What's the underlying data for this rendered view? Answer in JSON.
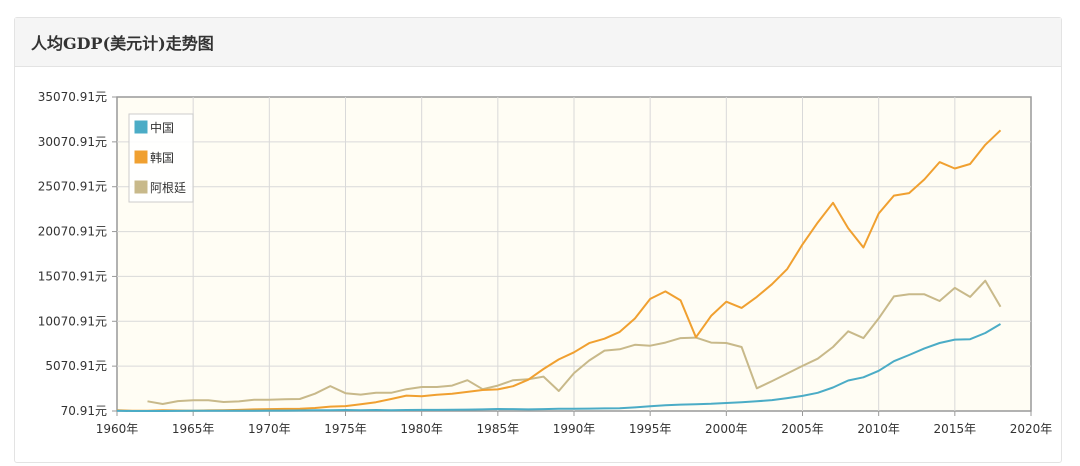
{
  "header": {
    "title": "人均GDP(美元计)走势图"
  },
  "chart_data": {
    "type": "line",
    "title": "人均GDP(美元计)走势图",
    "xlabel": "",
    "ylabel": "",
    "xlim": [
      1960,
      2020
    ],
    "ylim": [
      70.91,
      35070.91
    ],
    "x_ticks": [
      "1960年",
      "1965年",
      "1970年",
      "1975年",
      "1980年",
      "1985年",
      "1990年",
      "1995年",
      "2000年",
      "2005年",
      "2010年",
      "2015年",
      "2020年"
    ],
    "y_ticks": [
      "70.91元",
      "5070.91元",
      "10070.91元",
      "15070.91元",
      "20070.91元",
      "25070.91元",
      "30070.91元",
      "35070.91元"
    ],
    "grid": true,
    "legend_position": "top-left",
    "series": [
      {
        "name": "中国",
        "color": "#4bacc6",
        "x": [
          1960,
          1961,
          1962,
          1963,
          1964,
          1965,
          1966,
          1967,
          1968,
          1969,
          1970,
          1971,
          1972,
          1973,
          1974,
          1975,
          1976,
          1977,
          1978,
          1979,
          1980,
          1981,
          1982,
          1983,
          1984,
          1985,
          1986,
          1987,
          1988,
          1989,
          1990,
          1991,
          1992,
          1993,
          1994,
          1995,
          1996,
          1997,
          1998,
          1999,
          2000,
          2001,
          2002,
          2003,
          2004,
          2005,
          2006,
          2007,
          2008,
          2009,
          2010,
          2011,
          2012,
          2013,
          2014,
          2015,
          2016,
          2017,
          2018
        ],
        "values": [
          90,
          76,
          70,
          74,
          85,
          98,
          104,
          97,
          91,
          100,
          113,
          119,
          132,
          157,
          160,
          178,
          165,
          185,
          156,
          184,
          195,
          197,
          203,
          225,
          250,
          294,
          282,
          252,
          284,
          311,
          318,
          333,
          366,
          377,
          473,
          610,
          709,
          782,
          829,
          873,
          959,
          1053,
          1149,
          1289,
          1509,
          1753,
          2099,
          2694,
          3468,
          3832,
          4550,
          5618,
          6317,
          7051,
          7651,
          8033,
          8079,
          8760,
          9771
        ]
      },
      {
        "name": "韩国",
        "color": "#f0a030",
        "x": [
          1960,
          1961,
          1962,
          1963,
          1964,
          1965,
          1966,
          1967,
          1968,
          1969,
          1970,
          1971,
          1972,
          1973,
          1974,
          1975,
          1976,
          1977,
          1978,
          1979,
          1980,
          1981,
          1982,
          1983,
          1984,
          1985,
          1986,
          1987,
          1988,
          1989,
          1990,
          1991,
          1992,
          1993,
          1994,
          1995,
          1996,
          1997,
          1998,
          1999,
          2000,
          2001,
          2002,
          2003,
          2004,
          2005,
          2006,
          2007,
          2008,
          2009,
          2010,
          2011,
          2012,
          2013,
          2014,
          2015,
          2016,
          2017,
          2018
        ],
        "values": [
          158,
          94,
          106,
          146,
          124,
          108,
          133,
          161,
          197,
          244,
          279,
          301,
          324,
          406,
          563,
          615,
          834,
          1055,
          1405,
          1784,
          1715,
          1883,
          1992,
          2199,
          2413,
          2482,
          2835,
          3555,
          4748,
          5818,
          6610,
          7637,
          8127,
          8885,
          10385,
          12565,
          13403,
          12400,
          8282,
          10672,
          12257,
          11561,
          12789,
          14209,
          15908,
          18640,
          21073,
          23283,
          20430,
          18291,
          22087,
          24080,
          24359,
          25890,
          27811,
          27105,
          27608,
          29743,
          31363
        ]
      },
      {
        "name": "阿根廷",
        "color": "#c8b98a",
        "x": [
          1962,
          1963,
          1964,
          1965,
          1966,
          1967,
          1968,
          1969,
          1970,
          1971,
          1972,
          1973,
          1974,
          1975,
          1976,
          1977,
          1978,
          1979,
          1980,
          1981,
          1982,
          1983,
          1984,
          1985,
          1986,
          1987,
          1988,
          1989,
          1990,
          1991,
          1992,
          1993,
          1994,
          1995,
          1996,
          1997,
          1998,
          1999,
          2000,
          2001,
          2002,
          2003,
          2004,
          2005,
          2006,
          2007,
          2008,
          2009,
          2010,
          2011,
          2012,
          2013,
          2014,
          2015,
          2016,
          2017,
          2018
        ],
        "values": [
          1150,
          850,
          1170,
          1270,
          1280,
          1070,
          1140,
          1320,
          1320,
          1380,
          1410,
          2000,
          2850,
          2050,
          1900,
          2100,
          2100,
          2500,
          2750,
          2750,
          2900,
          3500,
          2500,
          2900,
          3500,
          3600,
          3900,
          2300,
          4300,
          5700,
          6800,
          6950,
          7450,
          7350,
          7700,
          8200,
          8250,
          7700,
          7650,
          7200,
          2600,
          3400,
          4250,
          5100,
          5900,
          7200,
          8950,
          8200,
          10390,
          12840,
          13080,
          13080,
          12330,
          13790,
          12790,
          14590,
          11680
        ]
      }
    ]
  }
}
